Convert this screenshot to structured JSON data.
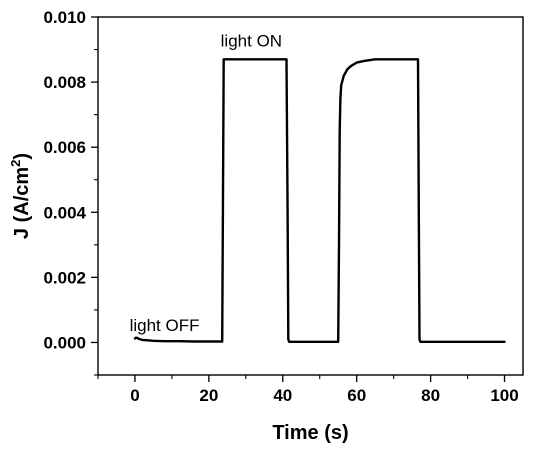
{
  "chart_data": {
    "type": "line",
    "title": "",
    "xlabel": "Time (s)",
    "ylabel_main": "J (A/cm",
    "ylabel_sup": "2",
    "ylabel_close": ")",
    "xlim": [
      -10,
      105
    ],
    "ylim": [
      -0.001,
      0.01
    ],
    "xticks": [
      0,
      20,
      40,
      60,
      80,
      100
    ],
    "xtick_labels": [
      "0",
      "20",
      "40",
      "60",
      "80",
      "100"
    ],
    "yticks": [
      0.0,
      0.002,
      0.004,
      0.006,
      0.008,
      0.01
    ],
    "ytick_labels": [
      "0.000",
      "0.002",
      "0.004",
      "0.006",
      "0.008",
      "0.010"
    ],
    "grid": false,
    "line_color": "#000000",
    "annotations": [
      {
        "text": "light ON",
        "x": 31.5,
        "y": 0.0091
      },
      {
        "text": "light OFF",
        "x": 8,
        "y": 0.00035
      }
    ],
    "series": [
      {
        "x": [
          0,
          0.3,
          0.6,
          1,
          2,
          3,
          5,
          8,
          12,
          16,
          20,
          23.6,
          23.8,
          24,
          30,
          35,
          41,
          41.3,
          41.5,
          41.7,
          45,
          50,
          55,
          55.2,
          55.4,
          55.6,
          55.8,
          56.5,
          57.5,
          58.5,
          60,
          62,
          65,
          68,
          72,
          76.6,
          76.8,
          77,
          77.2,
          80,
          90,
          100
        ],
        "y": [
          0.00012,
          0.00015,
          0.00014,
          0.00011,
          8e-05,
          7e-05,
          5e-05,
          4e-05,
          4e-05,
          3e-05,
          3e-05,
          3e-05,
          0.004,
          0.0087,
          0.0087,
          0.0087,
          0.0087,
          0.004,
          0.0001,
          2e-05,
          2e-05,
          2e-05,
          2e-05,
          0.003,
          0.0065,
          0.0075,
          0.0079,
          0.0082,
          0.0084,
          0.0085,
          0.0086,
          0.00865,
          0.0087,
          0.0087,
          0.0087,
          0.0087,
          0.004,
          0.0001,
          2e-05,
          2e-05,
          2e-05,
          2e-05
        ]
      }
    ]
  }
}
